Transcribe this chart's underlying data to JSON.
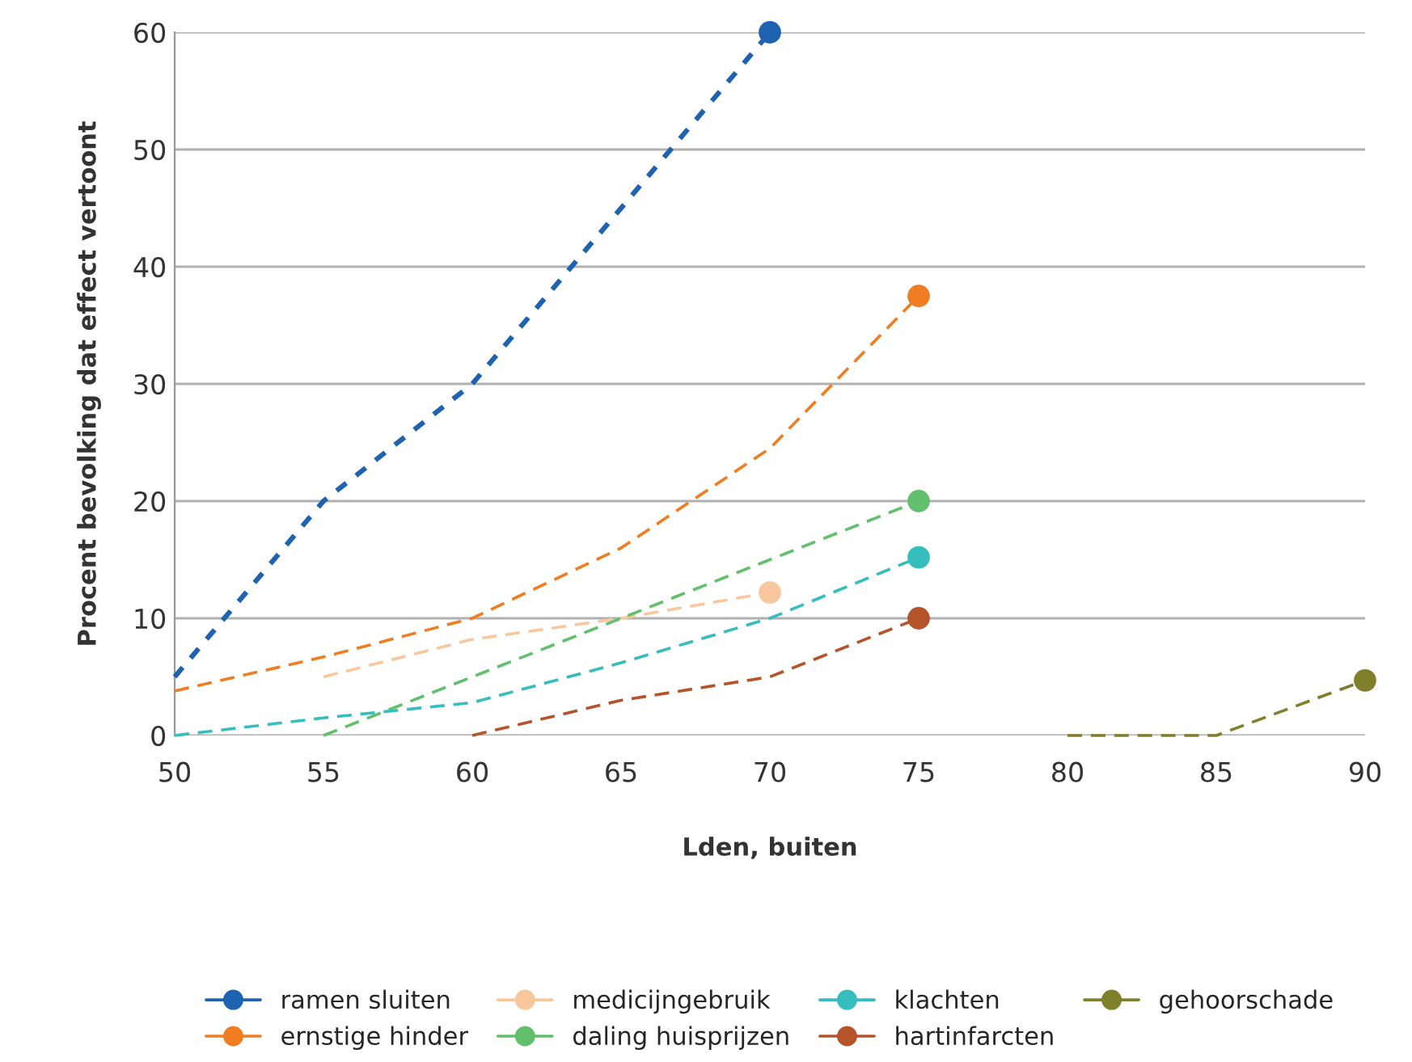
{
  "chart_data": {
    "type": "line",
    "xlabel": "Lden, buiten",
    "ylabel": "Procent bevolking dat effect vertoont",
    "xlim": [
      50,
      90
    ],
    "ylim": [
      0,
      60
    ],
    "xticks": [
      50,
      55,
      60,
      65,
      70,
      75,
      80,
      85,
      90
    ],
    "yticks": [
      0,
      10,
      20,
      30,
      40,
      50,
      60
    ],
    "grid": "y",
    "legend": "bottom",
    "line_style": "dashed",
    "series": [
      {
        "name": "ramen sluiten",
        "color": "#1f63b0",
        "line_style": "dotted",
        "x": [
          50,
          55,
          60,
          70
        ],
        "values": [
          5,
          20,
          30,
          60
        ]
      },
      {
        "name": "ernstige hinder",
        "color": "#f07d22",
        "x": [
          50,
          55,
          60,
          65,
          70,
          75
        ],
        "values": [
          3.8,
          6.7,
          10,
          16,
          24.5,
          37.5
        ]
      },
      {
        "name": "medicijngebruik",
        "color": "#f8c79e",
        "x": [
          55,
          60,
          65,
          70
        ],
        "values": [
          5,
          8.2,
          10,
          12.2
        ]
      },
      {
        "name": "daling huisprijzen",
        "color": "#62bf6b",
        "x": [
          55,
          60,
          65,
          70,
          75
        ],
        "values": [
          0,
          5,
          10,
          15,
          20
        ]
      },
      {
        "name": "klachten",
        "color": "#36bdbd",
        "x": [
          50,
          55,
          60,
          65,
          70,
          75
        ],
        "values": [
          0,
          1.5,
          2.8,
          6.2,
          10,
          15.2
        ]
      },
      {
        "name": "hartinfarcten",
        "color": "#b5532a",
        "x": [
          60,
          65,
          70,
          75
        ],
        "values": [
          0,
          3,
          5,
          10
        ]
      },
      {
        "name": "gehoorschade",
        "color": "#7f7f2c",
        "x": [
          80,
          85,
          90
        ],
        "values": [
          0,
          0,
          4.7
        ]
      },
      {
        "type": "scatter",
        "marker": "circle",
        "x": [
          70,
          75,
          70,
          75,
          75,
          75,
          90
        ],
        "values": [
          60,
          37.5,
          12.2,
          20,
          15.2,
          10,
          4.7
        ],
        "colors": [
          "#1f63b0",
          "#f07d22",
          "#f8c79e",
          "#62bf6b",
          "#36bdbd",
          "#b5532a",
          "#7f7f2c"
        ]
      }
    ]
  }
}
